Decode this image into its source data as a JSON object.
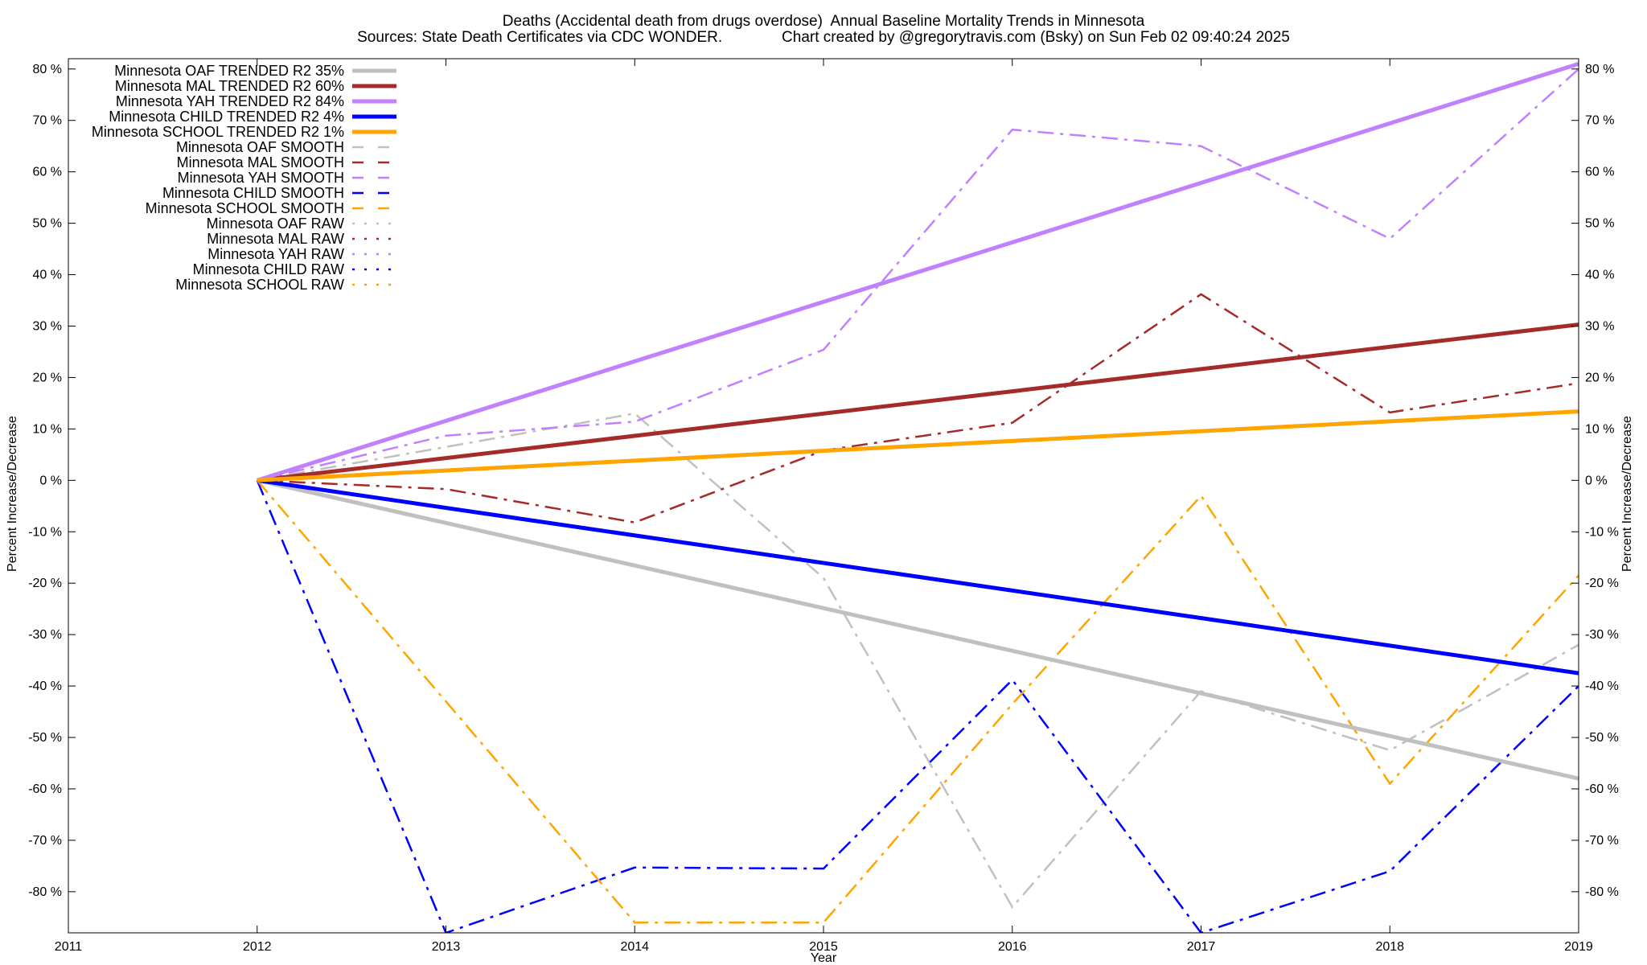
{
  "chart_data": {
    "type": "line",
    "title": "Deaths (Accidental death from drugs overdose)  Annual Baseline Mortality Trends in Minnesota",
    "subtitle": "Sources: State Death Certificates via CDC WONDER.              Chart created by @gregorytravis.com (Bsky) on Sun Feb 02 09:40:24 2025",
    "xlabel": "Year",
    "ylabel": "Percent Increase/Decrease",
    "y2label": "Percent Increase/Decrease",
    "xlim": [
      2011,
      2019
    ],
    "ylim": [
      -88,
      82
    ],
    "xticks": [
      "2011",
      "2012",
      "2013",
      "2014",
      "2015",
      "2016",
      "2017",
      "2018",
      "2019"
    ],
    "yticks": [
      "80 %",
      "70 %",
      "60 %",
      "50 %",
      "40 %",
      "30 %",
      "20 %",
      "10 %",
      "0 %",
      "-10 %",
      "-20 %",
      "-30 %",
      "-40 %",
      "-50 %",
      "-60 %",
      "-70 %",
      "-80 %"
    ],
    "ytick_values": [
      80,
      70,
      60,
      50,
      40,
      30,
      20,
      10,
      0,
      -10,
      -20,
      -30,
      -40,
      -50,
      -60,
      -70,
      -80
    ],
    "legend_position": "top-left",
    "grid": false,
    "series": [
      {
        "name": "Minnesota OAF TRENDED R2  35%",
        "style": "trend",
        "color": "#c0c0c0",
        "x": [
          2012,
          2019
        ],
        "values": [
          0,
          -58
        ]
      },
      {
        "name": "Minnesota MAL TRENDED R2  60%",
        "style": "trend",
        "color": "#a52a2a",
        "x": [
          2012,
          2019
        ],
        "values": [
          0,
          30.3
        ]
      },
      {
        "name": "Minnesota YAH TRENDED R2  84%",
        "style": "trend",
        "color": "#c080ff",
        "x": [
          2012,
          2019
        ],
        "values": [
          0,
          81
        ]
      },
      {
        "name": "Minnesota CHILD TRENDED R2  4%",
        "style": "trend",
        "color": "#0000ff",
        "x": [
          2012,
          2019
        ],
        "values": [
          0,
          -37.5
        ]
      },
      {
        "name": "Minnesota SCHOOL TRENDED R2  1%",
        "style": "trend",
        "color": "#ffa500",
        "x": [
          2012,
          2019
        ],
        "values": [
          0,
          13.4
        ]
      },
      {
        "name": "Minnesota OAF SMOOTH",
        "style": "smooth",
        "color": "#c0c0c0",
        "x": [
          2012,
          2013,
          2014,
          2015,
          2016,
          2017,
          2018,
          2019
        ],
        "values": [
          0,
          6.5,
          13,
          -19,
          -83,
          -41,
          -52.5,
          -32
        ]
      },
      {
        "name": "Minnesota MAL SMOOTH",
        "style": "smooth",
        "color": "#a52a2a",
        "x": [
          2012,
          2013,
          2014,
          2015,
          2016,
          2017,
          2018,
          2019
        ],
        "values": [
          0,
          -1.7,
          -8.2,
          5.8,
          11.2,
          36.2,
          13.2,
          18.9
        ]
      },
      {
        "name": "Minnesota YAH SMOOTH",
        "style": "smooth",
        "color": "#c080ff",
        "x": [
          2012,
          2013,
          2014,
          2015,
          2016,
          2017,
          2018,
          2019
        ],
        "values": [
          0,
          8.7,
          11.4,
          25.4,
          68.2,
          65,
          47,
          80
        ]
      },
      {
        "name": "Minnesota CHILD SMOOTH",
        "style": "smooth",
        "color": "#0000ff",
        "x": [
          2012,
          2013,
          2014,
          2015,
          2016,
          2017,
          2018,
          2019
        ],
        "values": [
          0,
          -88,
          -75.3,
          -75.5,
          -38.8,
          -88,
          -76,
          -40
        ]
      },
      {
        "name": "Minnesota SCHOOL SMOOTH",
        "style": "smooth",
        "color": "#ffa500",
        "x": [
          2012,
          2013,
          2014,
          2015,
          2016,
          2017,
          2018,
          2019
        ],
        "values": [
          0,
          -43,
          -86,
          -86,
          -43.5,
          -3,
          -59,
          -18.5
        ]
      },
      {
        "name": "Minnesota OAF RAW",
        "style": "raw",
        "color": "#c0c0c0",
        "x": [],
        "values": []
      },
      {
        "name": "Minnesota MAL RAW",
        "style": "raw",
        "color": "#a52a2a",
        "x": [],
        "values": []
      },
      {
        "name": "Minnesota YAH RAW",
        "style": "raw",
        "color": "#c080ff",
        "x": [],
        "values": []
      },
      {
        "name": "Minnesota CHILD RAW",
        "style": "raw",
        "color": "#0000ff",
        "x": [],
        "values": []
      },
      {
        "name": "Minnesota SCHOOL RAW",
        "style": "raw",
        "color": "#ffa500",
        "x": [],
        "values": []
      }
    ]
  }
}
